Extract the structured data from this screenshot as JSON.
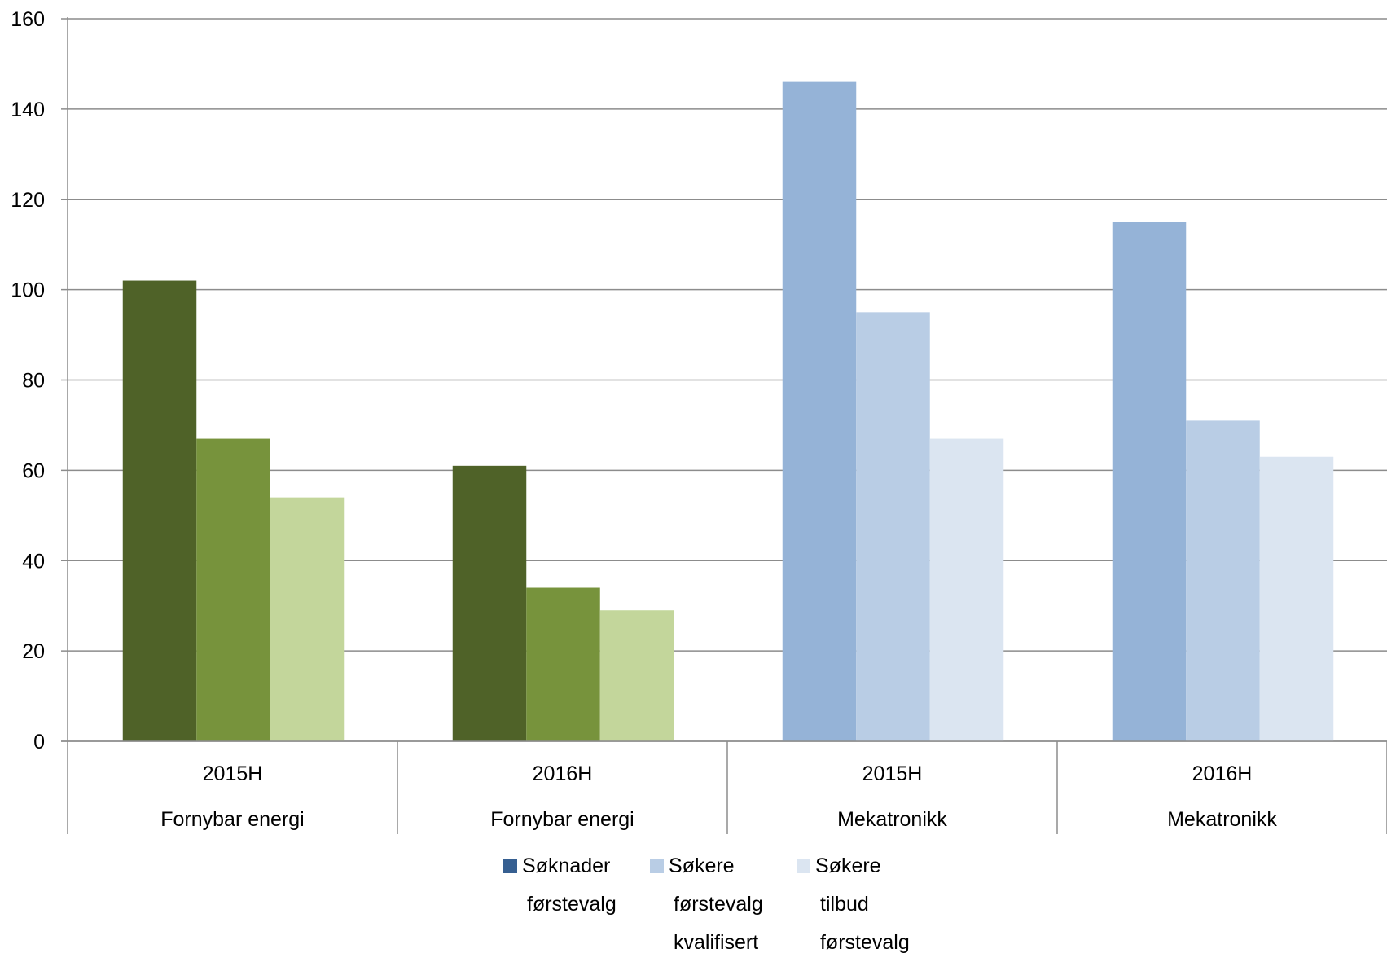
{
  "chart_data": {
    "type": "bar",
    "ylim": [
      0,
      160
    ],
    "yticks": [
      0,
      20,
      40,
      60,
      80,
      100,
      120,
      140,
      160
    ],
    "grid": true,
    "legend_position": "bottom",
    "categories": [
      {
        "period": "2015H",
        "group": "Fornybar energi",
        "values": [
          102,
          67,
          54
        ]
      },
      {
        "period": "2016H",
        "group": "Fornybar energi",
        "values": [
          61,
          34,
          29
        ]
      },
      {
        "period": "2015H",
        "group": "Mekatronikk",
        "values": [
          146,
          95,
          67
        ]
      },
      {
        "period": "2016H",
        "group": "Mekatronikk",
        "values": [
          115,
          71,
          63
        ]
      }
    ],
    "series": [
      {
        "name": "Søknader førstevalg",
        "lines": [
          "Søknader",
          "førstevalg"
        ]
      },
      {
        "name": "Søkere førstevalg kvalifisert",
        "lines": [
          "Søkere",
          "førstevalg",
          "kvalifisert"
        ]
      },
      {
        "name": "Søkere tilbud førstevalg",
        "lines": [
          "Søkere",
          "tilbud",
          "førstevalg"
        ]
      }
    ],
    "colors": {
      "Fornybar energi": [
        "#4f6228",
        "#77933c",
        "#c3d69b"
      ],
      "Mekatronikk": [
        "#95b3d7",
        "#b9cde5",
        "#dbe5f1"
      ],
      "legend": [
        "#365f91",
        "#b9cde5",
        "#dbe5f1"
      ],
      "gridline": "#8c8c8c"
    }
  }
}
